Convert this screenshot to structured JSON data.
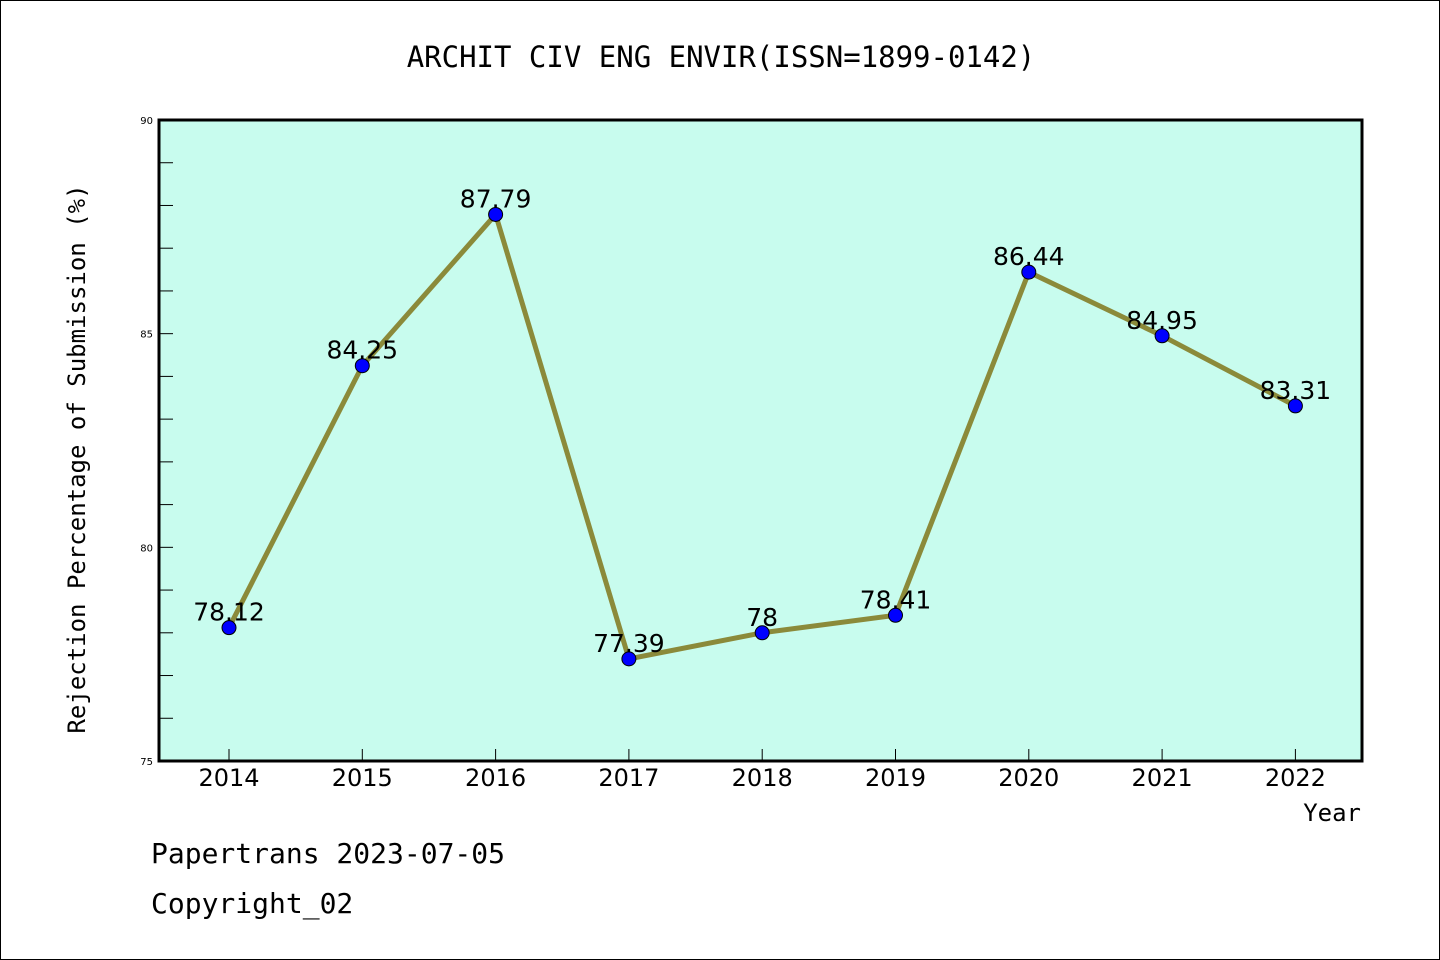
{
  "chart_data": {
    "type": "line",
    "title": "ARCHIT CIV ENG ENVIR(ISSN=1899-0142)",
    "xlabel": "Year",
    "ylabel": "Rejection Percentage of Submission (%)",
    "categories": [
      "2014",
      "2015",
      "2016",
      "2017",
      "2018",
      "2019",
      "2020",
      "2021",
      "2022"
    ],
    "values": [
      78.12,
      84.25,
      87.79,
      77.39,
      78,
      78.41,
      86.44,
      84.95,
      83.31
    ],
    "data_labels": [
      "78.12",
      "84.25",
      "87.79",
      "77.39",
      "78",
      "78.41",
      "86.44",
      "84.95",
      "83.31"
    ],
    "ylim": [
      75,
      90
    ],
    "y_ticks": [
      75,
      80,
      85,
      90
    ],
    "y_minor_step": 1,
    "grid": false,
    "colors": {
      "plot_background": "#c8fcee",
      "line": "#8b8a3a",
      "marker": "#0000ff"
    }
  },
  "footer": {
    "line1": "Papertrans 2023-07-05",
    "line2": "Copyright_02"
  }
}
